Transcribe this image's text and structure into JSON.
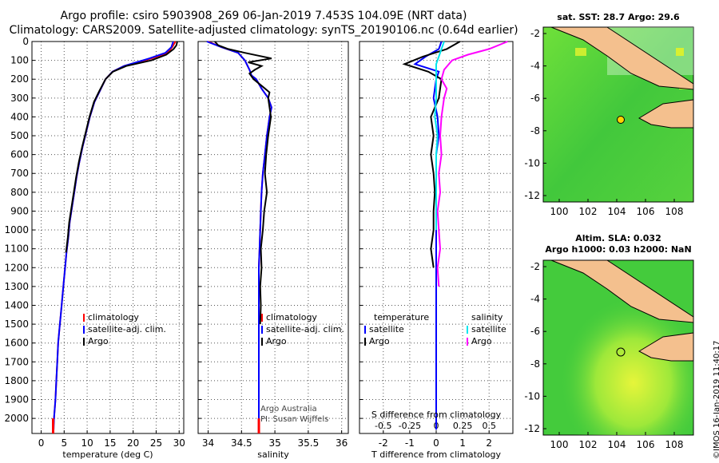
{
  "header": {
    "line1": "Argo profile: csiro 5903908_269 06-Jan-2019 7.453S 104.09E (NRT data)",
    "line2": "Climatology: CARS2009. Satellite-adjusted climatology: synTS_20190106.nc (0.64d earlier)"
  },
  "colors": {
    "climatology": "#ff0000",
    "satellite": "#0000ff",
    "argo": "#000000",
    "sat_sal": "#00e5ee",
    "argo_sal": "#ff00ff",
    "land": "#f4c08e",
    "ocean": "#39d23a",
    "ocean_hi": "#b8f020"
  },
  "credits": {
    "line1": "Argo Australia",
    "line2": "PI: Susan Wijffels"
  },
  "legend_temp": {
    "clim": "climatology",
    "sat": "satellite-adj. clim.",
    "argo": "Argo"
  },
  "legend_sal": {
    "clim": "climatology",
    "sat": "satellite-adj. clim.",
    "argo": "Argo"
  },
  "legend_diff": {
    "t_head": "temperature",
    "s_head": "salinity",
    "t_sat": "satellite",
    "t_argo": "Argo",
    "s_sat": "satellite",
    "s_argo": "Argo"
  },
  "maps": {
    "top_title": "sat. SST: 28.7 Argo: 29.6",
    "bottom_title1": "Altim. SLA: 0.032",
    "bottom_title2": "Argo h1000: 0.03 h2000: NaN"
  },
  "watermark": "©IMOS 16-Jan-2019 11:40:17",
  "chart_data": [
    {
      "type": "line",
      "name": "temperature",
      "xlabel": "temperature (deg C)",
      "ylabel": "",
      "xlim": [
        -2,
        31
      ],
      "ylim": [
        2080,
        0
      ],
      "xticks": [
        0,
        5,
        10,
        15,
        20,
        25,
        30
      ],
      "yticks": [
        0,
        100,
        200,
        300,
        400,
        500,
        600,
        700,
        800,
        900,
        1000,
        1100,
        1200,
        1300,
        1400,
        1500,
        1600,
        1700,
        1800,
        1900,
        2000
      ],
      "grid": true,
      "series": [
        {
          "name": "climatology",
          "color": "#ff0000",
          "x": [
            29.2,
            28.5,
            27.5,
            24,
            18,
            15.5,
            14,
            12.8,
            11.6,
            10.6,
            9.8,
            9,
            8.3,
            7.7,
            7.2,
            6.7,
            6.2,
            5.9,
            5.5,
            5.2,
            4.9,
            4.6,
            4.3,
            4.0,
            3.7,
            3.5,
            3.3,
            3.1,
            2.8,
            2.6
          ],
          "y": [
            0,
            30,
            60,
            90,
            130,
            160,
            200,
            260,
            320,
            400,
            480,
            560,
            640,
            720,
            800,
            880,
            960,
            1040,
            1120,
            1200,
            1280,
            1360,
            1440,
            1520,
            1600,
            1700,
            1800,
            1900,
            2000,
            2060
          ]
        },
        {
          "name": "satellite-adj. clim.",
          "color": "#0000ff",
          "x": [
            28.7,
            28.3,
            27,
            23.5,
            18,
            15.5,
            14,
            12.8,
            11.6,
            10.6,
            9.8,
            9,
            8.3,
            7.7,
            7.2,
            6.7,
            6.2,
            5.9,
            5.5,
            5.2,
            4.9,
            4.6,
            4.3,
            4.0,
            3.7,
            3.5,
            3.3,
            3.1,
            2.8,
            2.7
          ],
          "y": [
            0,
            30,
            60,
            90,
            130,
            160,
            200,
            260,
            320,
            400,
            480,
            560,
            640,
            720,
            800,
            880,
            960,
            1040,
            1120,
            1200,
            1280,
            1360,
            1440,
            1520,
            1600,
            1700,
            1800,
            1900,
            2000,
            2060
          ]
        },
        {
          "name": "Argo",
          "color": "#000000",
          "x": [
            29.6,
            29.4,
            28.8,
            27.2,
            24,
            18.5,
            15.6,
            14,
            12.7,
            11.5,
            10.5,
            9.7,
            8.9,
            8.2,
            7.6,
            7.1,
            6.6,
            6.1,
            5.8,
            5.4
          ],
          "y": [
            0,
            20,
            40,
            70,
            100,
            130,
            160,
            200,
            260,
            320,
            400,
            480,
            560,
            640,
            720,
            800,
            880,
            960,
            1040,
            1120
          ]
        }
      ]
    },
    {
      "type": "line",
      "name": "salinity",
      "xlabel": "salinity",
      "ylabel": "",
      "xlim": [
        33.85,
        36.1
      ],
      "ylim": [
        2080,
        0
      ],
      "xticks": [
        34,
        34.5,
        35,
        35.5,
        36
      ],
      "grid": true,
      "series": [
        {
          "name": "climatology",
          "color": "#ff0000",
          "x": [
            34.0,
            34.2,
            34.45,
            34.55,
            34.62,
            34.65,
            34.72,
            34.8,
            34.9,
            34.95,
            34.92,
            34.88,
            34.85,
            34.82,
            34.8,
            34.79,
            34.78,
            34.77,
            34.76,
            34.76,
            34.76,
            34.76,
            34.76,
            34.76,
            34.76
          ],
          "y": [
            0,
            30,
            60,
            100,
            150,
            180,
            200,
            250,
            300,
            350,
            400,
            500,
            600,
            700,
            800,
            900,
            1000,
            1100,
            1200,
            1400,
            1600,
            1800,
            1900,
            2000,
            2060
          ]
        },
        {
          "name": "satellite-adj. clim.",
          "color": "#0000ff",
          "x": [
            33.98,
            34.2,
            34.45,
            34.55,
            34.62,
            34.65,
            34.72,
            34.8,
            34.9,
            34.95,
            34.92,
            34.88,
            34.85,
            34.82,
            34.8,
            34.79,
            34.78,
            34.77,
            34.76,
            34.76,
            34.76,
            34.76,
            34.76,
            34.76,
            34.76
          ],
          "y": [
            0,
            30,
            60,
            100,
            150,
            180,
            200,
            250,
            300,
            350,
            400,
            500,
            600,
            700,
            800,
            900,
            1000,
            1100,
            1200,
            1400,
            1600,
            1800,
            1900,
            2000,
            2060
          ]
        },
        {
          "name": "Argo",
          "color": "#000000",
          "x": [
            34.1,
            34.15,
            34.3,
            34.55,
            34.95,
            34.6,
            34.8,
            34.7,
            34.62,
            34.68,
            34.82,
            34.92,
            34.9,
            34.94,
            34.9,
            34.87,
            34.85,
            34.88,
            34.84,
            34.82,
            34.79,
            34.8,
            34.78,
            34.79,
            34.78
          ],
          "y": [
            0,
            20,
            40,
            60,
            90,
            110,
            130,
            150,
            170,
            200,
            240,
            270,
            300,
            400,
            500,
            600,
            700,
            800,
            900,
            1000,
            1100,
            1200,
            1300,
            1400,
            1500
          ]
        }
      ]
    },
    {
      "type": "line",
      "name": "difference",
      "xlabel": "T difference from climatology",
      "xlabel2": "S difference from climatology",
      "xlim": [
        -2.9,
        2.9
      ],
      "ylim": [
        2080,
        0
      ],
      "xticks": [
        -2,
        -1,
        0,
        1,
        2
      ],
      "xticks2_labels": [
        "-0.5",
        "-0.25",
        "0",
        "0.25",
        "0.5"
      ],
      "grid": true,
      "series": [
        {
          "name": "T satellite",
          "color": "#0000ff",
          "x": [
            0.2,
            0.1,
            -0.4,
            -0.8,
            0.1,
            0.0,
            -0.1,
            0.05,
            0.1,
            0.0,
            0.0,
            0.0,
            0.0,
            0.0,
            0.0,
            0.0,
            0.0,
            0.0,
            0.0,
            0.0
          ],
          "y": [
            0,
            40,
            80,
            120,
            160,
            200,
            300,
            400,
            500,
            600,
            700,
            800,
            900,
            1000,
            1200,
            1400,
            1600,
            1800,
            2000,
            2060
          ]
        },
        {
          "name": "T Argo",
          "color": "#000000",
          "x": [
            0.9,
            0.4,
            -0.5,
            -1.2,
            -0.3,
            0.2,
            0.1,
            -0.2,
            -0.1,
            -0.2,
            -0.1,
            -0.05,
            -0.1,
            -0.1,
            -0.2,
            -0.1
          ],
          "y": [
            0,
            40,
            80,
            120,
            160,
            200,
            300,
            400,
            500,
            600,
            700,
            800,
            900,
            1000,
            1100,
            1200
          ]
        },
        {
          "name": "S satellite",
          "color": "#00e5ee",
          "x": [
            0.3,
            0.2,
            0.1,
            0.0,
            0.0,
            0.0,
            -0.05,
            0.05,
            0.0,
            0.0,
            0.0,
            0.0,
            0.0
          ],
          "y": [
            0,
            40,
            80,
            120,
            200,
            300,
            400,
            500,
            600,
            700,
            800,
            900,
            1000
          ]
        },
        {
          "name": "S Argo",
          "color": "#ff00ff",
          "x": [
            2.7,
            2.0,
            1.2,
            0.6,
            0.3,
            0.2,
            0.4,
            0.3,
            0.2,
            0.15,
            0.2,
            0.1,
            0.15,
            0.05,
            0.1,
            0.15,
            0.05,
            0.1
          ],
          "y": [
            0,
            40,
            70,
            100,
            150,
            200,
            250,
            300,
            400,
            500,
            600,
            700,
            800,
            900,
            1000,
            1100,
            1200,
            1300
          ]
        }
      ]
    }
  ],
  "maps_axes": {
    "top": {
      "yticks": [
        "-2",
        "-4",
        "-6",
        "-8",
        "-10",
        "-12"
      ],
      "xticks": [
        "100",
        "102",
        "104",
        "106",
        "108"
      ]
    },
    "bottom": {
      "yticks": [
        "-2",
        "-4",
        "-6",
        "-8",
        "-10",
        "-12"
      ],
      "xticks": [
        "100",
        "102",
        "104",
        "106",
        "108"
      ]
    }
  }
}
